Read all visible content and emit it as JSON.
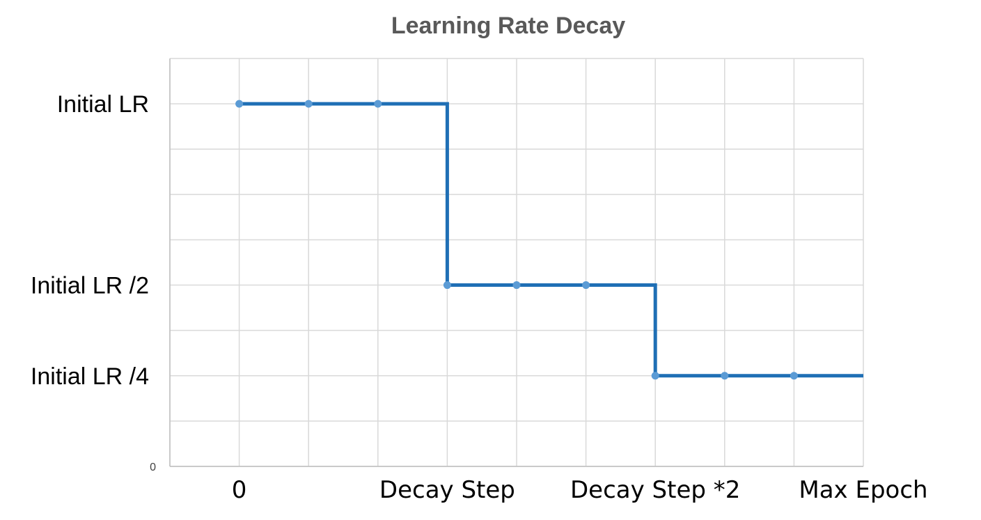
{
  "chart_data": {
    "type": "line",
    "title": "Learning Rate Decay",
    "xlabel": "",
    "ylabel": "",
    "x_categories": [
      "0",
      "",
      "",
      "",
      "",
      "",
      "",
      "",
      "",
      ""
    ],
    "x_tick_labels": [
      {
        "index": 0,
        "text": "0"
      },
      {
        "index": 3,
        "text": "Decay Step"
      },
      {
        "index": 6,
        "text": "Decay Step *2"
      },
      {
        "index": 9,
        "text": "Max Epoch"
      }
    ],
    "y_tick_labels": [
      {
        "value": 1.0,
        "text": "Initial LR"
      },
      {
        "value": 0.5,
        "text": "Initial LR /2"
      },
      {
        "value": 0.25,
        "text": "Initial LR /4"
      },
      {
        "value": 0.0,
        "text": "0"
      }
    ],
    "ylim": [
      0,
      1.125
    ],
    "xlim": [
      -1,
      9
    ],
    "grid": true,
    "series": [
      {
        "name": "Learning Rate",
        "color": "#1f6fb5",
        "marker_color": "#5b9bd5",
        "step_points": [
          [
            0,
            1.0
          ],
          [
            3,
            1.0
          ],
          [
            3,
            0.5
          ],
          [
            6,
            0.5
          ],
          [
            6,
            0.25
          ],
          [
            9,
            0.25
          ]
        ],
        "markers": [
          [
            0,
            1.0
          ],
          [
            1,
            1.0
          ],
          [
            2,
            1.0
          ],
          [
            3,
            0.5
          ],
          [
            4,
            0.5
          ],
          [
            5,
            0.5
          ],
          [
            6,
            0.25
          ],
          [
            7,
            0.25
          ],
          [
            8,
            0.25
          ]
        ]
      }
    ]
  }
}
